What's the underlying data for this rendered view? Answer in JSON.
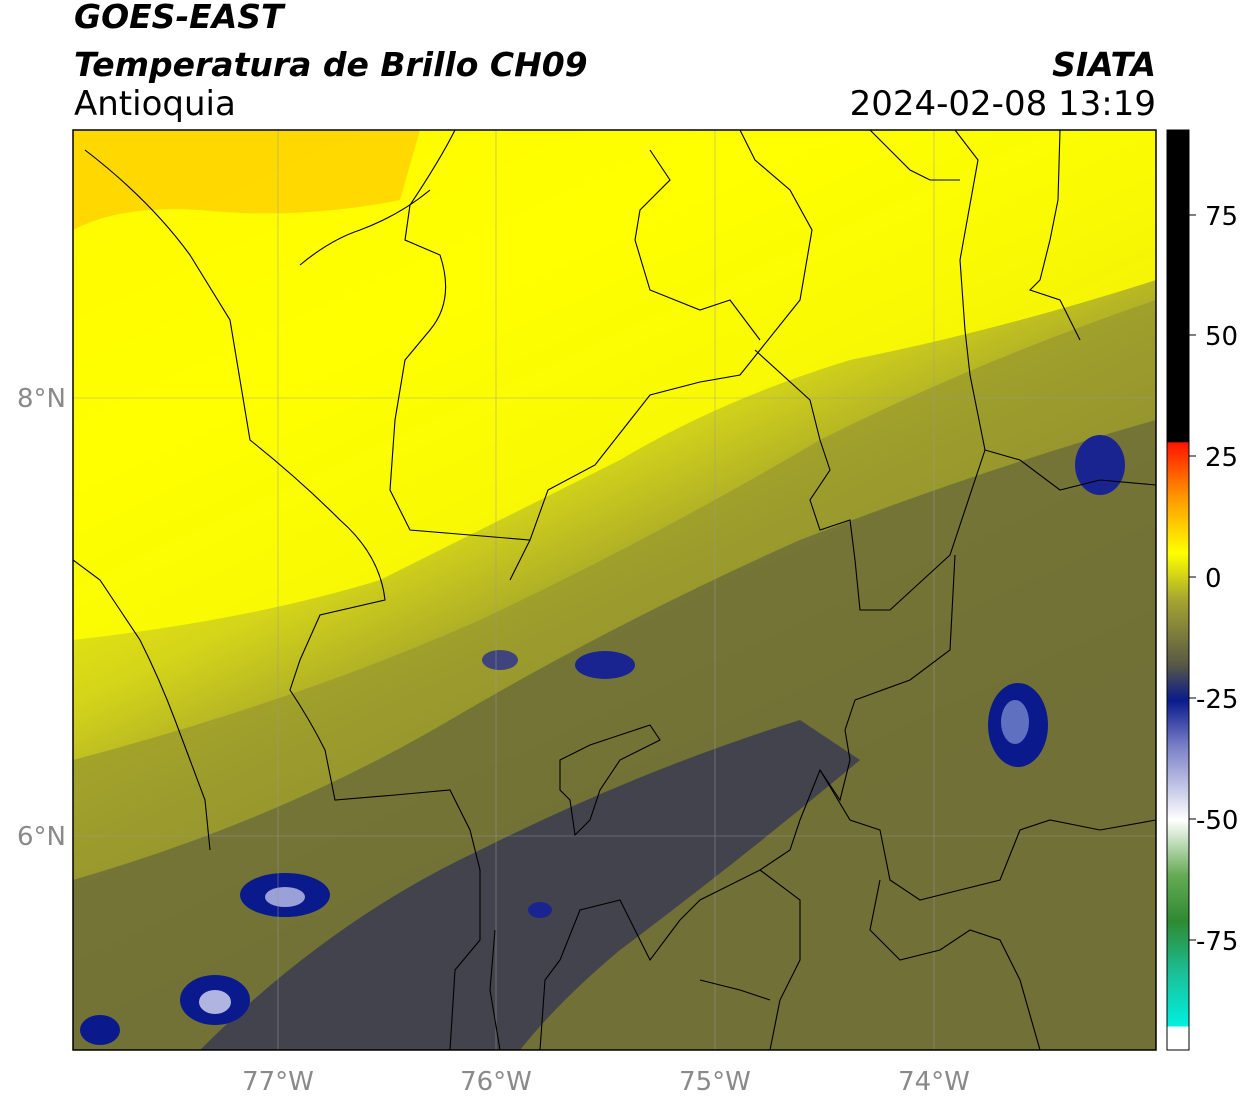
{
  "header": {
    "satellite": "GOES-EAST",
    "product": "Temperatura de Brillo CH09",
    "region": "Antioquia",
    "agency": "SIATA",
    "datetime": "2024-02-08 13:19"
  },
  "map": {
    "lon_labels": [
      "77°W",
      "76°W",
      "75°W",
      "74°W"
    ],
    "lat_labels": [
      "8°N",
      "6°N"
    ]
  },
  "colorbar": {
    "tick_labels": [
      "75",
      "50",
      "25",
      "0",
      "-25",
      "-50",
      "-75"
    ],
    "colors": {
      "cyan": "#19e3d3",
      "green": "#3a9a3a",
      "white": "#ffffff",
      "blue": "#0a1a8c",
      "olive": "#5e5e3a",
      "yellow": "#ffff00",
      "orange": "#ff8c00",
      "red": "#ff1a00",
      "black": "#000000"
    }
  }
}
